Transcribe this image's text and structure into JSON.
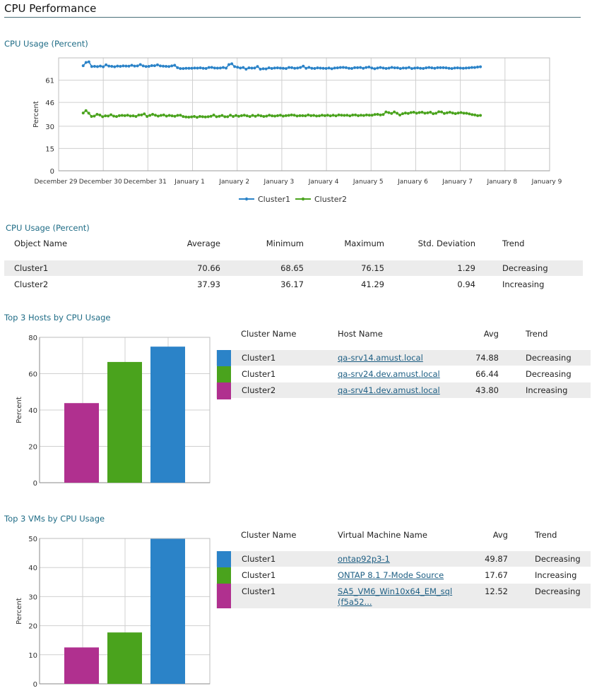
{
  "page_title": "CPU Performance",
  "line_section": {
    "title": "CPU Usage (Percent)"
  },
  "chart_data": [
    {
      "type": "line",
      "title": "CPU Usage (Percent)",
      "ylabel": "Percent",
      "ylim": [
        0,
        76
      ],
      "yticks": [
        0,
        15,
        30,
        46,
        61
      ],
      "xlabel": "",
      "x_tick_labels": [
        "December 29",
        "December 30",
        "December 31",
        "January 1",
        "January 2",
        "January 3",
        "January 4",
        "January 5",
        "January 6",
        "January 7",
        "January 8",
        "January 9"
      ],
      "grid": true,
      "legend_position": "bottom-center",
      "series": [
        {
          "name": "Cluster1",
          "color": "#2b83c8",
          "values": [
            70.7,
            72.9,
            73.3,
            70.2,
            70.3,
            70.1,
            70.5,
            70.0,
            71.3,
            70.5,
            70.3,
            70.0,
            70.5,
            70.3,
            70.6,
            70.5,
            70.4,
            71.0,
            70.5,
            70.6,
            71.5,
            70.6,
            70.2,
            70.3,
            70.8,
            70.7,
            71.3,
            70.6,
            70.4,
            70.3,
            70.2,
            70.6,
            71.0,
            69.4,
            68.8,
            68.8,
            69.0,
            69.0,
            69.0,
            69.2,
            69.1,
            69.3,
            69.0,
            68.9,
            69.5,
            69.6,
            69.2,
            69.1,
            69.2,
            69.5,
            69.1,
            71.5,
            72.0,
            70.1,
            69.7,
            69.2,
            69.5,
            68.4,
            69.3,
            69.1,
            69.2,
            70.2,
            68.4,
            68.7,
            68.6,
            69.3,
            68.9,
            69.2,
            69.3,
            69.1,
            69.0,
            68.8,
            69.5,
            69.4,
            69.0,
            69.2,
            69.5,
            70.4,
            69.0,
            69.6,
            69.0,
            68.9,
            69.3,
            69.1,
            69.0,
            68.9,
            69.2,
            68.7,
            69.2,
            69.3,
            69.5,
            69.6,
            69.4,
            69.0,
            68.9,
            69.4,
            69.4,
            69.5,
            69.0,
            69.5,
            69.8,
            69.2,
            68.7,
            69.2,
            69.5,
            69.2,
            68.9,
            69.1,
            69.6,
            69.3,
            69.3,
            68.8,
            69.2,
            69.1,
            69.5,
            68.8,
            69.1,
            69.3,
            69.0,
            68.9,
            69.3,
            69.5,
            69.3,
            69.0,
            69.4,
            69.4,
            69.4,
            69.3,
            69.0,
            68.8,
            69.2,
            69.3,
            69.1,
            69.0,
            69.2,
            69.3,
            69.5,
            69.5,
            69.8,
            70.0
          ]
        },
        {
          "name": "Cluster2",
          "color": "#4aa31d",
          "values": [
            38.9,
            40.5,
            38.8,
            36.6,
            36.8,
            38.0,
            37.5,
            36.4,
            37.0,
            36.9,
            37.7,
            36.8,
            36.5,
            37.1,
            37.3,
            37.1,
            37.4,
            36.9,
            37.0,
            36.6,
            37.5,
            37.6,
            38.3,
            36.6,
            37.3,
            38.0,
            37.4,
            36.8,
            37.3,
            37.6,
            36.8,
            37.3,
            37.0,
            36.7,
            37.3,
            37.4,
            36.5,
            36.2,
            36.1,
            36.3,
            36.6,
            36.0,
            36.6,
            36.4,
            36.2,
            36.4,
            36.7,
            37.5,
            36.4,
            36.7,
            37.2,
            36.4,
            36.4,
            37.4,
            36.6,
            37.2,
            36.7,
            37.1,
            37.4,
            37.0,
            36.5,
            37.3,
            36.7,
            37.4,
            37.0,
            36.6,
            36.8,
            37.4,
            37.0,
            36.8,
            37.1,
            37.4,
            36.8,
            37.1,
            37.3,
            37.6,
            37.4,
            36.9,
            37.1,
            37.1,
            37.0,
            37.6,
            37.1,
            37.3,
            36.9,
            37.0,
            37.4,
            37.1,
            37.4,
            37.0,
            37.4,
            37.0,
            37.6,
            37.4,
            37.3,
            37.4,
            37.0,
            37.5,
            37.6,
            37.1,
            37.4,
            37.2,
            37.6,
            37.4,
            37.4,
            37.9,
            38.0,
            37.6,
            37.9,
            39.6,
            39.1,
            38.6,
            39.6,
            38.7,
            37.5,
            38.4,
            38.9,
            38.6,
            39.2,
            39.4,
            38.8,
            39.2,
            39.4,
            38.8,
            39.0,
            39.4,
            38.4,
            38.7,
            39.7,
            39.6,
            38.6,
            39.0,
            39.4,
            38.9,
            38.5,
            38.9,
            39.2,
            38.8,
            38.7,
            38.3,
            37.8,
            37.6,
            37.1,
            37.3
          ]
        }
      ]
    },
    {
      "type": "bar",
      "title": "Top 3 Hosts by CPU Usage",
      "ylabel": "Percent",
      "ylim": [
        0,
        80
      ],
      "yticks": [
        0,
        20,
        40,
        60,
        80
      ],
      "categories": [
        "qa-srv41.dev.amust.local",
        "qa-srv24.dev.amust.local",
        "qa-srv14.amust.local"
      ],
      "values": [
        43.8,
        66.44,
        74.88
      ],
      "colors": [
        "#b0308f",
        "#4aa31d",
        "#2b83c8"
      ],
      "grid": true
    },
    {
      "type": "bar",
      "title": "Top 3 VMs by CPU Usage",
      "ylabel": "Percent",
      "ylim": [
        0,
        50
      ],
      "yticks": [
        0,
        10,
        20,
        30,
        40,
        50
      ],
      "categories": [
        "SA5_VM6_Win10x64_EM_sql (f5a52...",
        "ONTAP 8.1 7-Mode Source",
        "ontap92p3-1"
      ],
      "values": [
        12.52,
        17.67,
        49.87
      ],
      "colors": [
        "#b0308f",
        "#4aa31d",
        "#2b83c8"
      ],
      "grid": true
    }
  ],
  "stats": {
    "title": "CPU Usage (Percent)",
    "headers": [
      "Object Name",
      "Average",
      "Minimum",
      "Maximum",
      "Std. Deviation",
      "Trend"
    ],
    "rows": [
      [
        "Cluster1",
        "70.66",
        "68.65",
        "76.15",
        "1.29",
        "Decreasing"
      ],
      [
        "Cluster2",
        "37.93",
        "36.17",
        "41.29",
        "0.94",
        "Increasing"
      ]
    ]
  },
  "hosts": {
    "title": "Top 3 Hosts by CPU Usage",
    "headers": [
      "Cluster Name",
      "Host Name",
      "Avg",
      "Trend"
    ],
    "rows": [
      {
        "color": "#2b83c8",
        "cluster": "Cluster1",
        "name": "qa-srv14.amust.local",
        "avg": "74.88",
        "trend": "Decreasing"
      },
      {
        "color": "#4aa31d",
        "cluster": "Cluster1",
        "name": "qa-srv24.dev.amust.local",
        "avg": "66.44",
        "trend": "Decreasing"
      },
      {
        "color": "#b0308f",
        "cluster": "Cluster2",
        "name": "qa-srv41.dev.amust.local",
        "avg": "43.80",
        "trend": "Increasing"
      }
    ]
  },
  "vms": {
    "title": "Top 3 VMs by CPU Usage",
    "headers": [
      "Cluster Name",
      "Virtual Machine Name",
      "Avg",
      "Trend"
    ],
    "rows": [
      {
        "color": "#2b83c8",
        "cluster": "Cluster1",
        "name": "ontap92p3-1",
        "name2": "",
        "avg": "49.87",
        "trend": "Decreasing"
      },
      {
        "color": "#4aa31d",
        "cluster": "Cluster1",
        "name": "ONTAP 8.1 7-Mode Source",
        "name2": "",
        "avg": "17.67",
        "trend": "Increasing"
      },
      {
        "color": "#b0308f",
        "cluster": "Cluster1",
        "name": "SA5_VM6_Win10x64_EM_sql",
        "name2": "(f5a52...",
        "avg": "12.52",
        "trend": "Decreasing"
      }
    ]
  }
}
